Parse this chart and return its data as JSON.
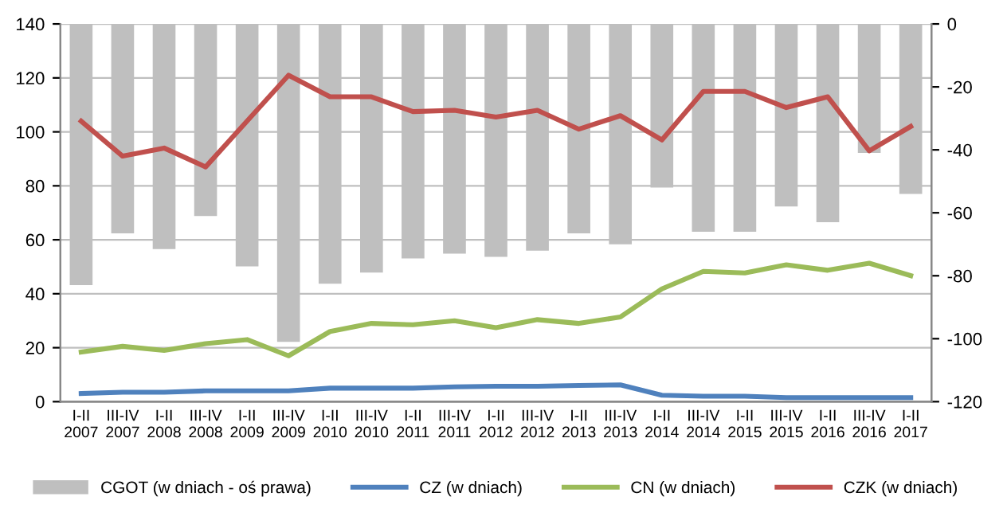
{
  "chart_data": {
    "type": "line",
    "categories": [
      "I-II\n2007",
      "III-IV\n2007",
      "I-II\n2008",
      "III-IV\n2008",
      "I-II\n2009",
      "III-IV\n2009",
      "I-II\n2010",
      "III-IV\n2010",
      "I-II\n2011",
      "III-IV\n2011",
      "I-II\n2012",
      "III-IV\n2012",
      "I-II\n2013",
      "III-IV\n2013",
      "I-II\n2014",
      "III-IV\n2014",
      "I-II\n2015",
      "III-IV\n2015",
      "I-II\n2016",
      "III-IV\n2016",
      "I-II\n2017"
    ],
    "series": [
      {
        "name": "CGOT (w dniach - oś prawa)",
        "type": "bar",
        "axis": "y2",
        "color": "#bfbfbf",
        "values": [
          -83,
          -66.5,
          -71.5,
          -61,
          -77,
          -101,
          -82.5,
          -79,
          -74.5,
          -73,
          -74,
          -72,
          -66.5,
          -70,
          -52,
          -66,
          -66,
          -58,
          -63,
          -41,
          -54
        ]
      },
      {
        "name": "CZ (w dniach)",
        "color": "#4f81bd",
        "values": [
          3,
          3.5,
          3.5,
          4,
          4,
          4,
          5,
          5,
          5,
          5.5,
          5.7,
          5.7,
          6,
          6.2,
          2.4,
          2,
          2,
          1.5,
          1.5,
          1.5,
          1.5
        ]
      },
      {
        "name": "CN (w dniach)",
        "color": "#9bbb59",
        "values": [
          18.4,
          20.5,
          19,
          21.5,
          23,
          17,
          26,
          29,
          28.5,
          30,
          27.4,
          30.4,
          29,
          31.4,
          41.8,
          48.3,
          47.7,
          50.7,
          48.7,
          51.3,
          46.7
        ]
      },
      {
        "name": "CZK (w dniach)",
        "color": "#c0504d",
        "values": [
          104,
          91,
          94,
          87,
          104,
          121,
          113,
          113,
          107.5,
          108,
          105.5,
          108,
          101,
          106,
          97,
          115,
          115,
          109,
          113,
          93,
          102
        ]
      }
    ],
    "ylim": [
      0,
      140
    ],
    "yticks": [
      0,
      20,
      40,
      60,
      80,
      100,
      120,
      140
    ],
    "y2lim": [
      -120,
      0
    ],
    "y2ticks": [
      -120,
      -100,
      -80,
      -60,
      -40,
      -20,
      0
    ],
    "grid": "y",
    "legend": "bottom",
    "marker": "none",
    "line_style": "solid"
  }
}
